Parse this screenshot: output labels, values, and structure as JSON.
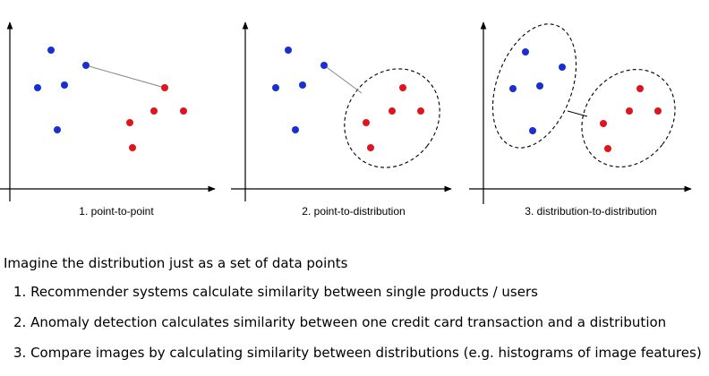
{
  "captions": [
    "1. point-to-point",
    "2. point-to-distribution",
    "3. distribution-to-distribution"
  ],
  "intro": "Imagine the distribution just as a set of data points",
  "items": [
    "1. Recommender systems calculate similarity between single products / users",
    "2. Anomaly detection calculates similarity between one credit card transaction and a distribution",
    "3. Compare images by calculating similarity between distributions (e.g. histograms of image features)"
  ],
  "colors": {
    "blue": "#1a2fd1",
    "red": "#e0141e",
    "axis": "#000000",
    "link": "#888888"
  }
}
